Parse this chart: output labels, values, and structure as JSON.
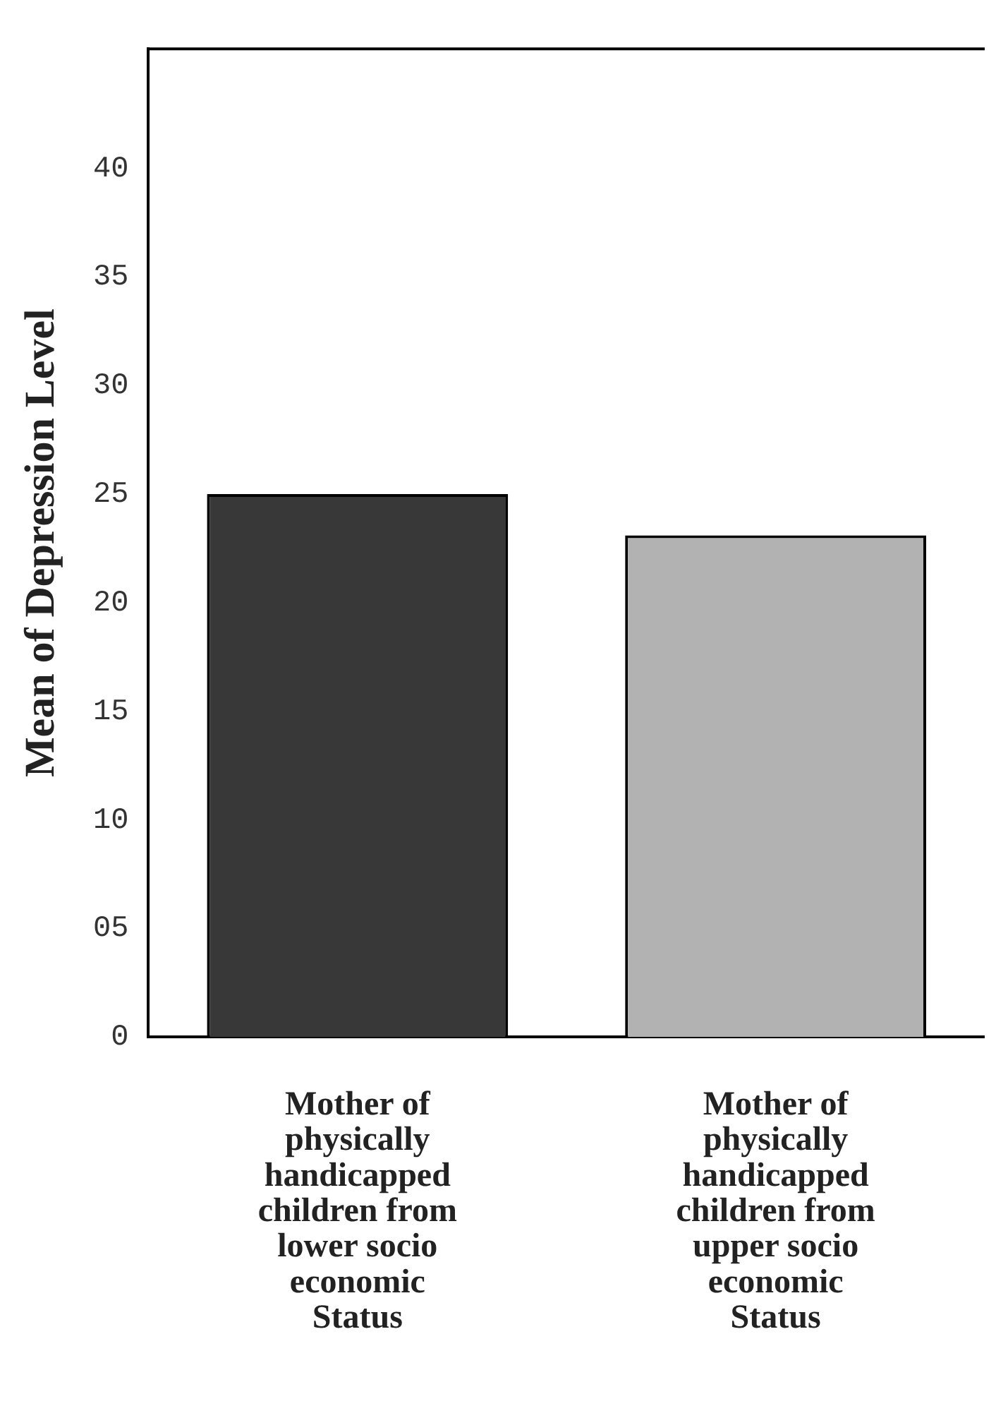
{
  "chart_data": {
    "type": "bar",
    "ylabel": "Mean of Depression Level",
    "categories": [
      "Mother of physically handicapped children from lower socio economic Status",
      "Mother of physically handicapped children from upper socio economic Status"
    ],
    "values": [
      25.0,
      23.1
    ],
    "colors": [
      "#383838",
      "#b2b2b2"
    ],
    "ylim": [
      0,
      45.5
    ],
    "yticks": [
      0,
      {
        "value": 5,
        "label": "05"
      },
      10,
      15,
      20,
      25,
      30,
      35,
      40
    ],
    "grid": false,
    "legend": false
  }
}
